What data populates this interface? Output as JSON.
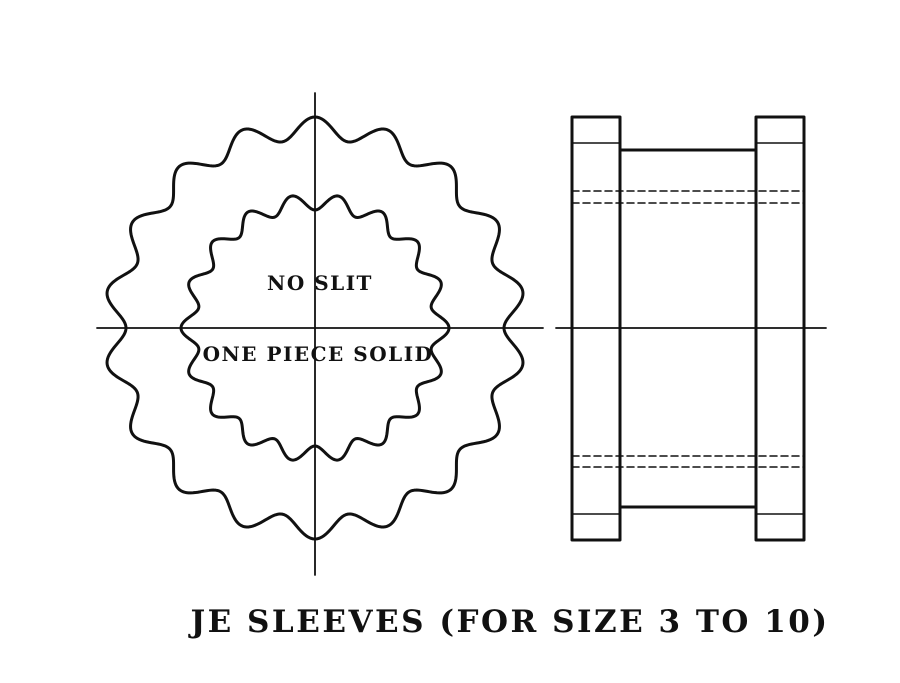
{
  "labels": {
    "inner_top": "NO SLIT",
    "inner_bottom": "ONE PIECE SOLID",
    "caption": "JE SLEEVES (FOR SIZE 3 TO 10)"
  },
  "figure": {
    "outer_teeth": 18,
    "inner_teeth": 18
  },
  "colors": {
    "ink": "#111111",
    "background": "#ffffff"
  }
}
